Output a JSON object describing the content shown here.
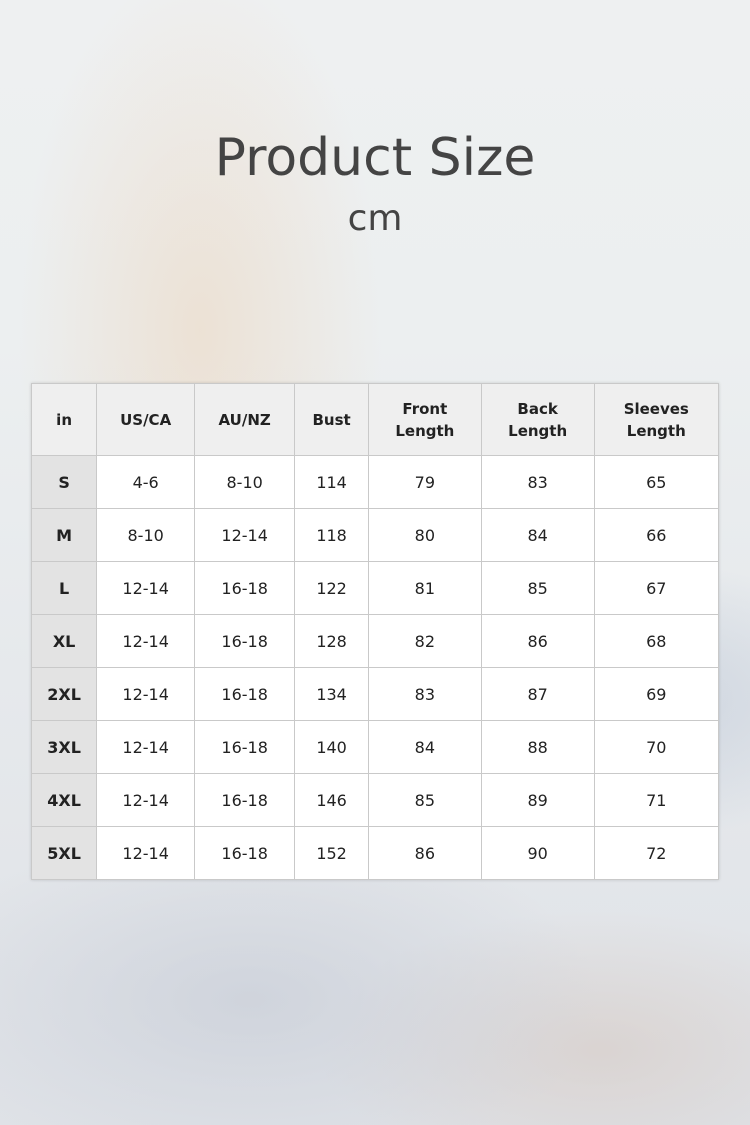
{
  "title": "Product Size",
  "unit": "cm",
  "table": {
    "headers": [
      "in",
      "US/CA",
      "AU/NZ",
      "Bust",
      "Front\nLength",
      "Back\nLength",
      "Sleeves\nLength"
    ],
    "rows": [
      [
        "S",
        "4-6",
        "8-10",
        "114",
        "79",
        "83",
        "65"
      ],
      [
        "M",
        "8-10",
        "12-14",
        "118",
        "80",
        "84",
        "66"
      ],
      [
        "L",
        "12-14",
        "16-18",
        "122",
        "81",
        "85",
        "67"
      ],
      [
        "XL",
        "12-14",
        "16-18",
        "128",
        "82",
        "86",
        "68"
      ],
      [
        "2XL",
        "12-14",
        "16-18",
        "134",
        "83",
        "87",
        "69"
      ],
      [
        "3XL",
        "12-14",
        "16-18",
        "140",
        "84",
        "88",
        "70"
      ],
      [
        "4XL",
        "12-14",
        "16-18",
        "146",
        "85",
        "89",
        "71"
      ],
      [
        "5XL",
        "12-14",
        "16-18",
        "152",
        "86",
        "90",
        "72"
      ]
    ]
  }
}
